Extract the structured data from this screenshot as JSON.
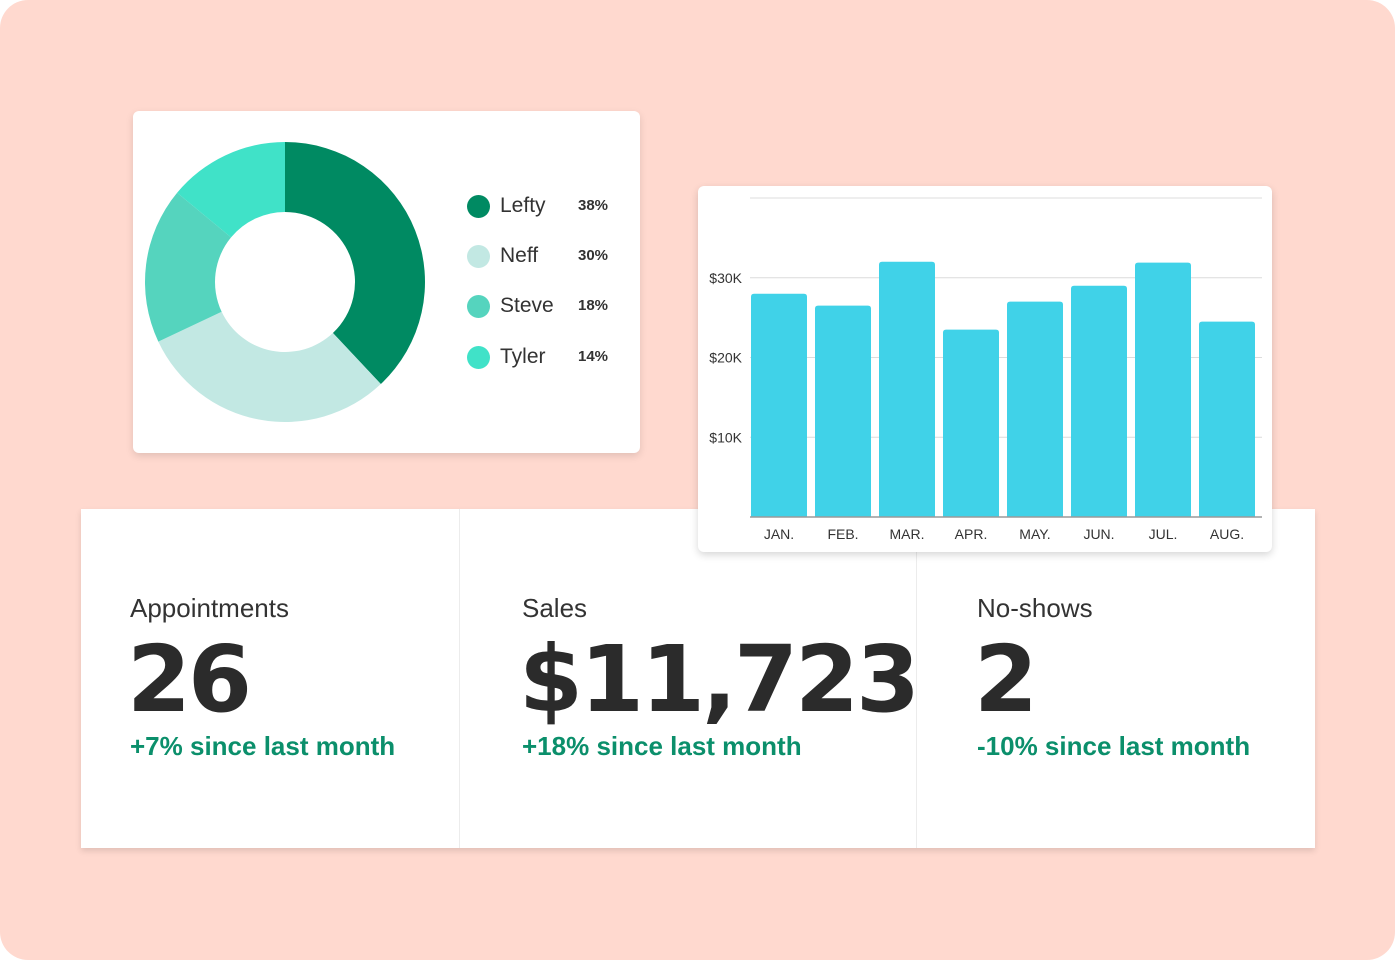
{
  "colors": {
    "background": "#ffd9cf",
    "positive": "#0b8f6b",
    "bar": "#40d2e8"
  },
  "donut": {
    "legend": [
      {
        "name": "Lefty",
        "pct_label": "38%",
        "value": 38,
        "color": "#008a62"
      },
      {
        "name": "Neff",
        "pct_label": "30%",
        "value": 30,
        "color": "#c2e8e3"
      },
      {
        "name": "Steve",
        "pct_label": "18%",
        "value": 18,
        "color": "#55d4be"
      },
      {
        "name": "Tyler",
        "pct_label": "14%",
        "value": 14,
        "color": "#40e2c8"
      }
    ]
  },
  "chart_data": {
    "type": "bar",
    "categories": [
      "JAN.",
      "FEB.",
      "MAR.",
      "APR.",
      "MAY.",
      "JUN.",
      "JUL.",
      "AUG."
    ],
    "values": [
      28000,
      26500,
      32000,
      23500,
      27000,
      29000,
      31900,
      24500
    ],
    "yticks": [
      {
        "value": 10000,
        "label": "$10K"
      },
      {
        "value": 20000,
        "label": "$20K"
      },
      {
        "value": 30000,
        "label": "$30K"
      }
    ],
    "ylim": [
      0,
      40000
    ],
    "grid": true,
    "color": "#40d2e8"
  },
  "stats": [
    {
      "label": "Appointments",
      "value": "26",
      "change": "+7% since last month"
    },
    {
      "label": "Sales",
      "value": "$11,723",
      "change": "+18% since last month"
    },
    {
      "label": "No-shows",
      "value": "2",
      "change": "-10% since last month"
    }
  ]
}
